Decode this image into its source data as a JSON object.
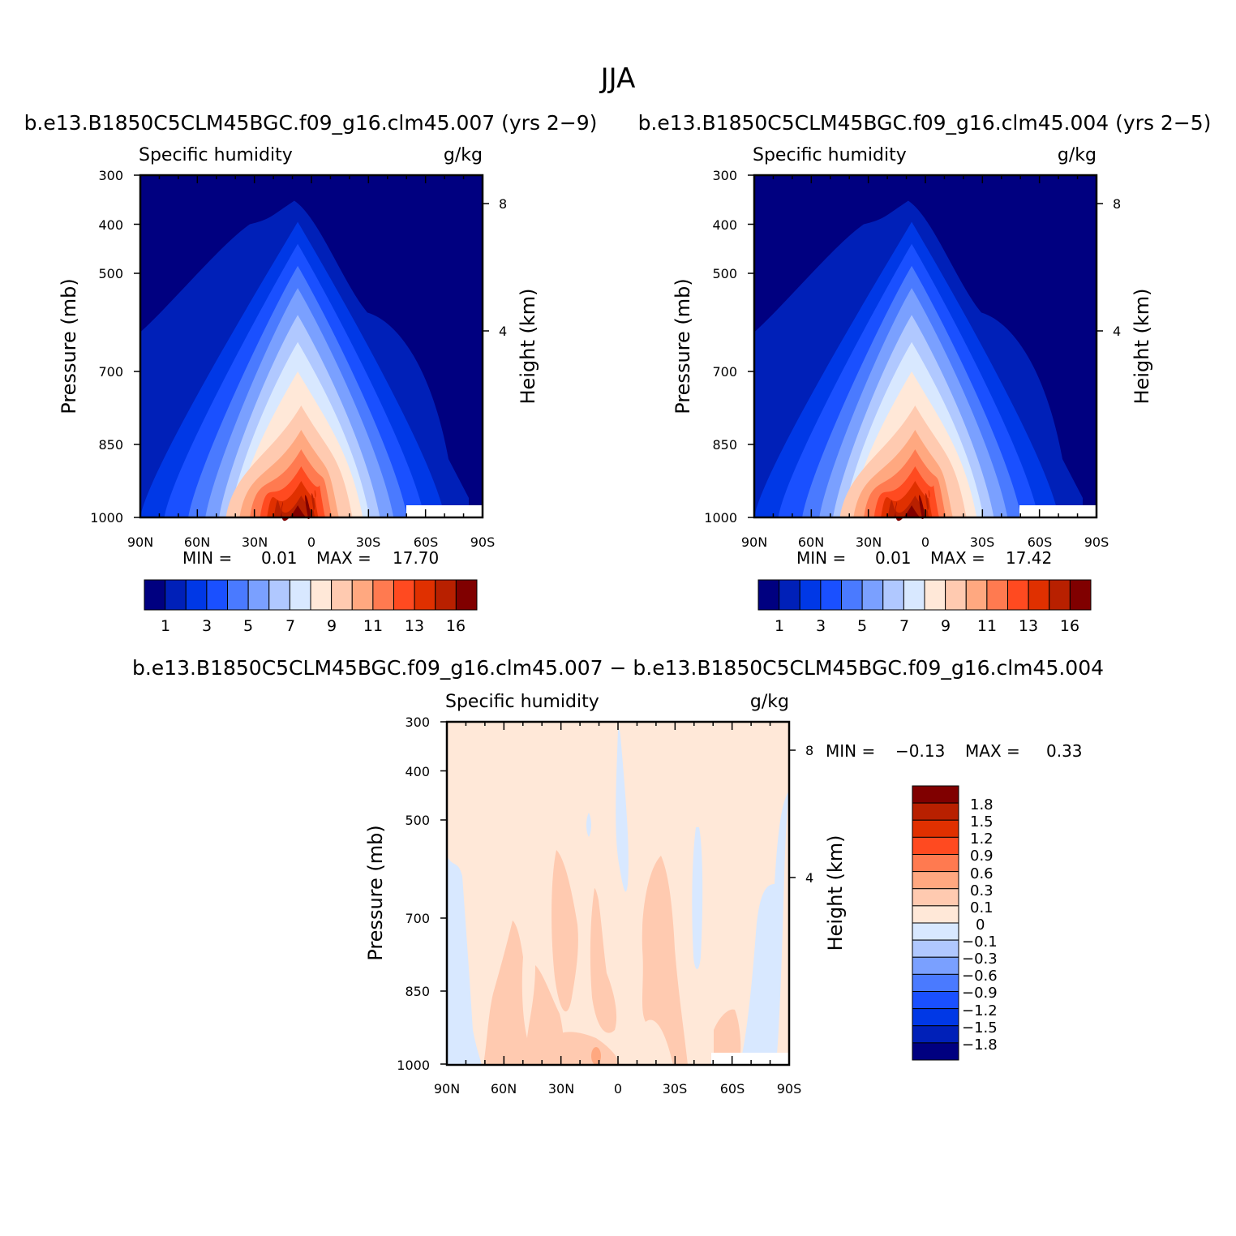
{
  "page": {
    "title": "JJA"
  },
  "chart_data": [
    {
      "type": "heatmap",
      "title": "b.e13.B1850C5CLM45BGC.f09_g16.clm45.007 (yrs 2−9)",
      "subtitle_left": "Specific humidity",
      "subtitle_right": "g/kg",
      "ylabel": "Pressure (mb)",
      "ylabel_right": "Height (km)",
      "x_ticks": [
        "90N",
        "60N",
        "30N",
        "0",
        "30S",
        "60S",
        "90S"
      ],
      "y_ticks": [
        "300",
        "400",
        "500",
        "700",
        "850",
        "1000"
      ],
      "y_ticks_right": [
        "8",
        "4"
      ],
      "ylim": [
        1000,
        300
      ],
      "stats": {
        "min_label": "MIN =",
        "min": "0.01",
        "max_label": "MAX =",
        "max": "17.70"
      },
      "levels": [
        "1",
        "3",
        "5",
        "7",
        "9",
        "11",
        "13",
        "16"
      ],
      "peak": 17.7,
      "colors": [
        "#000080",
        "#0020b8",
        "#0038e6",
        "#1a50ff",
        "#4a7aff",
        "#7aa0ff",
        "#b0c8ff",
        "#d8e8ff",
        "#ffe8d8",
        "#ffcab0",
        "#ffa880",
        "#ff7a50",
        "#ff4a20",
        "#e03000",
        "#b82000",
        "#800000"
      ]
    },
    {
      "type": "heatmap",
      "title": "b.e13.B1850C5CLM45BGC.f09_g16.clm45.004 (yrs 2−5)",
      "subtitle_left": "Specific humidity",
      "subtitle_right": "g/kg",
      "ylabel": "Pressure (mb)",
      "ylabel_right": "Height (km)",
      "x_ticks": [
        "90N",
        "60N",
        "30N",
        "0",
        "30S",
        "60S",
        "90S"
      ],
      "y_ticks": [
        "300",
        "400",
        "500",
        "700",
        "850",
        "1000"
      ],
      "y_ticks_right": [
        "8",
        "4"
      ],
      "ylim": [
        1000,
        300
      ],
      "stats": {
        "min_label": "MIN =",
        "min": "0.01",
        "max_label": "MAX =",
        "max": "17.42"
      },
      "levels": [
        "1",
        "3",
        "5",
        "7",
        "9",
        "11",
        "13",
        "16"
      ],
      "peak": 17.42,
      "colors": [
        "#000080",
        "#0020b8",
        "#0038e6",
        "#1a50ff",
        "#4a7aff",
        "#7aa0ff",
        "#b0c8ff",
        "#d8e8ff",
        "#ffe8d8",
        "#ffcab0",
        "#ffa880",
        "#ff7a50",
        "#ff4a20",
        "#e03000",
        "#b82000",
        "#800000"
      ]
    },
    {
      "type": "heatmap",
      "title": "b.e13.B1850C5CLM45BGC.f09_g16.clm45.007 − b.e13.B1850C5CLM45BGC.f09_g16.clm45.004",
      "subtitle_left": "Specific humidity",
      "subtitle_right": "g/kg",
      "ylabel": "Pressure (mb)",
      "ylabel_right": "Height (km)",
      "x_ticks": [
        "90N",
        "60N",
        "30N",
        "0",
        "30S",
        "60S",
        "90S"
      ],
      "y_ticks": [
        "300",
        "400",
        "500",
        "700",
        "850",
        "1000"
      ],
      "y_ticks_right": [
        "8",
        "4"
      ],
      "ylim": [
        1000,
        300
      ],
      "stats": {
        "min_label": "MIN =",
        "min": "−0.13",
        "max_label": "MAX =",
        "max": "0.33"
      },
      "levels": [
        "1.8",
        "1.5",
        "1.2",
        "0.9",
        "0.6",
        "0.3",
        "0.1",
        "0",
        "−0.1",
        "−0.3",
        "−0.6",
        "−0.9",
        "−1.2",
        "−1.5",
        "−1.8"
      ],
      "colors": [
        "#800000",
        "#b82000",
        "#e03000",
        "#ff4a20",
        "#ff7a50",
        "#ffa880",
        "#ffcab0",
        "#ffe8d8",
        "#d8e8ff",
        "#b0c8ff",
        "#7aa0ff",
        "#4a7aff",
        "#1a50ff",
        "#0038e6",
        "#0020b8",
        "#000080"
      ]
    }
  ]
}
